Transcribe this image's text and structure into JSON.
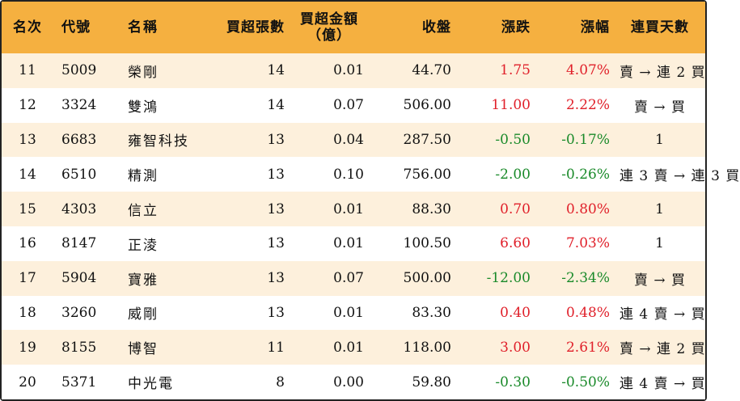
{
  "header": {
    "rank": "名次",
    "code": "代號",
    "name": "名稱",
    "lots": "買超張數",
    "amount_line1": "買超金額",
    "amount_line2": "（億）",
    "close": "收盤",
    "change": "漲跌",
    "pct": "漲幅",
    "days": "連買天數"
  },
  "colors": {
    "header_bg": "#f5b040",
    "row_alt_bg": "#fdf0dc",
    "up": "#e0202a",
    "down": "#1a8a2a"
  },
  "rows": [
    {
      "rank": "11",
      "code": "5009",
      "name": "榮剛",
      "lots": "14",
      "amount": "0.01",
      "close": "44.70",
      "change": "1.75",
      "pct": "4.07%",
      "days": "賣 → 連 2 買",
      "dir": "up"
    },
    {
      "rank": "12",
      "code": "3324",
      "name": "雙鴻",
      "lots": "14",
      "amount": "0.07",
      "close": "506.00",
      "change": "11.00",
      "pct": "2.22%",
      "days": "賣 → 買",
      "dir": "up"
    },
    {
      "rank": "13",
      "code": "6683",
      "name": "雍智科技",
      "lots": "13",
      "amount": "0.04",
      "close": "287.50",
      "change": "-0.50",
      "pct": "-0.17%",
      "days": "1",
      "dir": "down"
    },
    {
      "rank": "14",
      "code": "6510",
      "name": "精測",
      "lots": "13",
      "amount": "0.10",
      "close": "756.00",
      "change": "-2.00",
      "pct": "-0.26%",
      "days": "連 3 賣 → 連 3 買",
      "dir": "down"
    },
    {
      "rank": "15",
      "code": "4303",
      "name": "信立",
      "lots": "13",
      "amount": "0.01",
      "close": "88.30",
      "change": "0.70",
      "pct": "0.80%",
      "days": "1",
      "dir": "up"
    },
    {
      "rank": "16",
      "code": "8147",
      "name": "正淩",
      "lots": "13",
      "amount": "0.01",
      "close": "100.50",
      "change": "6.60",
      "pct": "7.03%",
      "days": "1",
      "dir": "up"
    },
    {
      "rank": "17",
      "code": "5904",
      "name": "寶雅",
      "lots": "13",
      "amount": "0.07",
      "close": "500.00",
      "change": "-12.00",
      "pct": "-2.34%",
      "days": "賣 → 買",
      "dir": "down"
    },
    {
      "rank": "18",
      "code": "3260",
      "name": "威剛",
      "lots": "13",
      "amount": "0.01",
      "close": "83.30",
      "change": "0.40",
      "pct": "0.48%",
      "days": "連 4 賣 → 買",
      "dir": "up"
    },
    {
      "rank": "19",
      "code": "8155",
      "name": "博智",
      "lots": "11",
      "amount": "0.01",
      "close": "118.00",
      "change": "3.00",
      "pct": "2.61%",
      "days": "賣 → 連 2 買",
      "dir": "up"
    },
    {
      "rank": "20",
      "code": "5371",
      "name": "中光電",
      "lots": "8",
      "amount": "0.00",
      "close": "59.80",
      "change": "-0.30",
      "pct": "-0.50%",
      "days": "連 4 賣 → 買",
      "dir": "down"
    }
  ]
}
